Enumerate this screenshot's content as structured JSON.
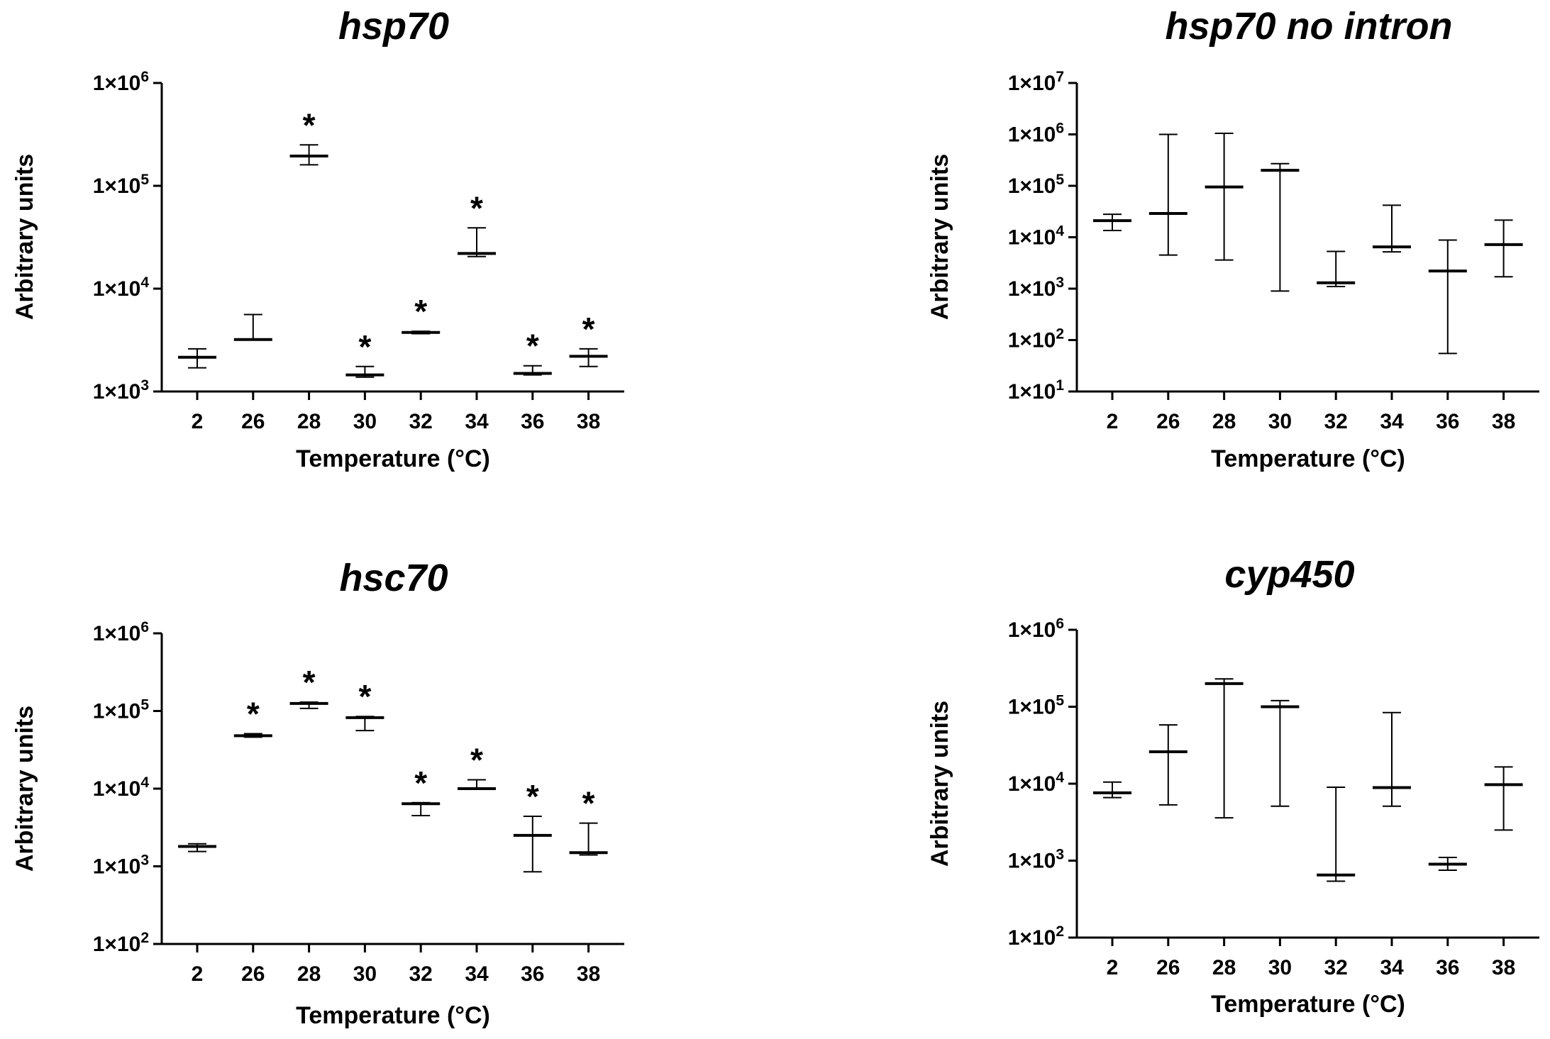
{
  "chart_data": [
    {
      "type": "scatter",
      "style": "median with range, log10 y axis",
      "title": "hsp70",
      "xlabel": "Temperature (°C)",
      "ylabel": "Arbitrary units",
      "yscale": "log",
      "ylim": [
        1000,
        1000000
      ],
      "yticks": [
        {
          "mantissa": "1×10",
          "exp": "3",
          "value": 1000
        },
        {
          "mantissa": "1×10",
          "exp": "4",
          "value": 10000
        },
        {
          "mantissa": "1×10",
          "exp": "5",
          "value": 100000
        },
        {
          "mantissa": "1×10",
          "exp": "6",
          "value": 1000000
        }
      ],
      "categories": [
        "2",
        "26",
        "28",
        "30",
        "32",
        "34",
        "36",
        "38"
      ],
      "points": [
        {
          "median": 2150,
          "min": 1700,
          "max": 2600,
          "sig": ""
        },
        {
          "median": 3200,
          "min": 3200,
          "max": 5600,
          "sig": ""
        },
        {
          "median": 195000,
          "min": 160000,
          "max": 250000,
          "sig": "*"
        },
        {
          "median": 1450,
          "min": 1380,
          "max": 1750,
          "sig": "*"
        },
        {
          "median": 3750,
          "min": 3650,
          "max": 3850,
          "sig": "*"
        },
        {
          "median": 22000,
          "min": 20500,
          "max": 39000,
          "sig": "*"
        },
        {
          "median": 1500,
          "min": 1450,
          "max": 1780,
          "sig": "*"
        },
        {
          "median": 2200,
          "min": 1750,
          "max": 2600,
          "sig": "*"
        }
      ]
    },
    {
      "type": "scatter",
      "style": "median with range, log10 y axis",
      "title": "hsp70 no intron",
      "xlabel": "Temperature (°C)",
      "ylabel": "Arbitrary units",
      "yscale": "log",
      "ylim": [
        10,
        10000000
      ],
      "yticks": [
        {
          "mantissa": "1×10",
          "exp": "1",
          "value": 10
        },
        {
          "mantissa": "1×10",
          "exp": "2",
          "value": 100
        },
        {
          "mantissa": "1×10",
          "exp": "3",
          "value": 1000
        },
        {
          "mantissa": "1×10",
          "exp": "4",
          "value": 10000
        },
        {
          "mantissa": "1×10",
          "exp": "5",
          "value": 100000
        },
        {
          "mantissa": "1×10",
          "exp": "6",
          "value": 1000000
        },
        {
          "mantissa": "1×10",
          "exp": "7",
          "value": 10000000
        }
      ],
      "categories": [
        "2",
        "26",
        "28",
        "30",
        "32",
        "34",
        "36",
        "38"
      ],
      "points": [
        {
          "median": 21000,
          "min": 13500,
          "max": 28000,
          "sig": ""
        },
        {
          "median": 29000,
          "min": 4500,
          "max": 1000000,
          "sig": ""
        },
        {
          "median": 95000,
          "min": 3600,
          "max": 1050000,
          "sig": ""
        },
        {
          "median": 200000,
          "min": 900,
          "max": 270000,
          "sig": ""
        },
        {
          "median": 1300,
          "min": 1100,
          "max": 5300,
          "sig": ""
        },
        {
          "median": 6500,
          "min": 5200,
          "max": 42000,
          "sig": ""
        },
        {
          "median": 2200,
          "min": 55,
          "max": 8800,
          "sig": ""
        },
        {
          "median": 7200,
          "min": 1700,
          "max": 21500,
          "sig": ""
        }
      ]
    },
    {
      "type": "scatter",
      "style": "median with range, log10 y axis",
      "title": "hsc70",
      "xlabel": "Temperature (°C)",
      "ylabel": "Arbitrary units",
      "yscale": "log",
      "ylim": [
        100,
        1000000
      ],
      "yticks": [
        {
          "mantissa": "1×10",
          "exp": "2",
          "value": 100
        },
        {
          "mantissa": "1×10",
          "exp": "3",
          "value": 1000
        },
        {
          "mantissa": "1×10",
          "exp": "4",
          "value": 10000
        },
        {
          "mantissa": "1×10",
          "exp": "5",
          "value": 100000
        },
        {
          "mantissa": "1×10",
          "exp": "6",
          "value": 1000000
        }
      ],
      "categories": [
        "2",
        "26",
        "28",
        "30",
        "32",
        "34",
        "36",
        "38"
      ],
      "points": [
        {
          "median": 1800,
          "min": 1550,
          "max": 1950,
          "sig": ""
        },
        {
          "median": 48000,
          "min": 46000,
          "max": 51000,
          "sig": "*"
        },
        {
          "median": 125000,
          "min": 108000,
          "max": 130000,
          "sig": "*"
        },
        {
          "median": 82000,
          "min": 56000,
          "max": 85000,
          "sig": "*"
        },
        {
          "median": 6400,
          "min": 4500,
          "max": 6600,
          "sig": "*"
        },
        {
          "median": 10000,
          "min": 9800,
          "max": 13000,
          "sig": "*"
        },
        {
          "median": 2500,
          "min": 850,
          "max": 4400,
          "sig": "*"
        },
        {
          "median": 1500,
          "min": 1400,
          "max": 3600,
          "sig": "*"
        }
      ]
    },
    {
      "type": "scatter",
      "style": "median with range, log10 y axis",
      "title": "cyp450",
      "xlabel": "Temperature (°C)",
      "ylabel": "Arbitrary units",
      "yscale": "log",
      "ylim": [
        100,
        1000000
      ],
      "yticks": [
        {
          "mantissa": "1×10",
          "exp": "2",
          "value": 100
        },
        {
          "mantissa": "1×10",
          "exp": "3",
          "value": 1000
        },
        {
          "mantissa": "1×10",
          "exp": "4",
          "value": 10000
        },
        {
          "mantissa": "1×10",
          "exp": "5",
          "value": 100000
        },
        {
          "mantissa": "1×10",
          "exp": "6",
          "value": 1000000
        }
      ],
      "categories": [
        "2",
        "26",
        "28",
        "30",
        "32",
        "34",
        "36",
        "38"
      ],
      "points": [
        {
          "median": 7600,
          "min": 6600,
          "max": 10500,
          "sig": ""
        },
        {
          "median": 26000,
          "min": 5300,
          "max": 58000,
          "sig": ""
        },
        {
          "median": 200000,
          "min": 3600,
          "max": 230000,
          "sig": ""
        },
        {
          "median": 100000,
          "min": 5100,
          "max": 120000,
          "sig": ""
        },
        {
          "median": 650,
          "min": 540,
          "max": 9000,
          "sig": ""
        },
        {
          "median": 8900,
          "min": 5100,
          "max": 84000,
          "sig": ""
        },
        {
          "median": 900,
          "min": 750,
          "max": 1100,
          "sig": ""
        },
        {
          "median": 9700,
          "min": 2500,
          "max": 16500,
          "sig": ""
        }
      ]
    }
  ]
}
